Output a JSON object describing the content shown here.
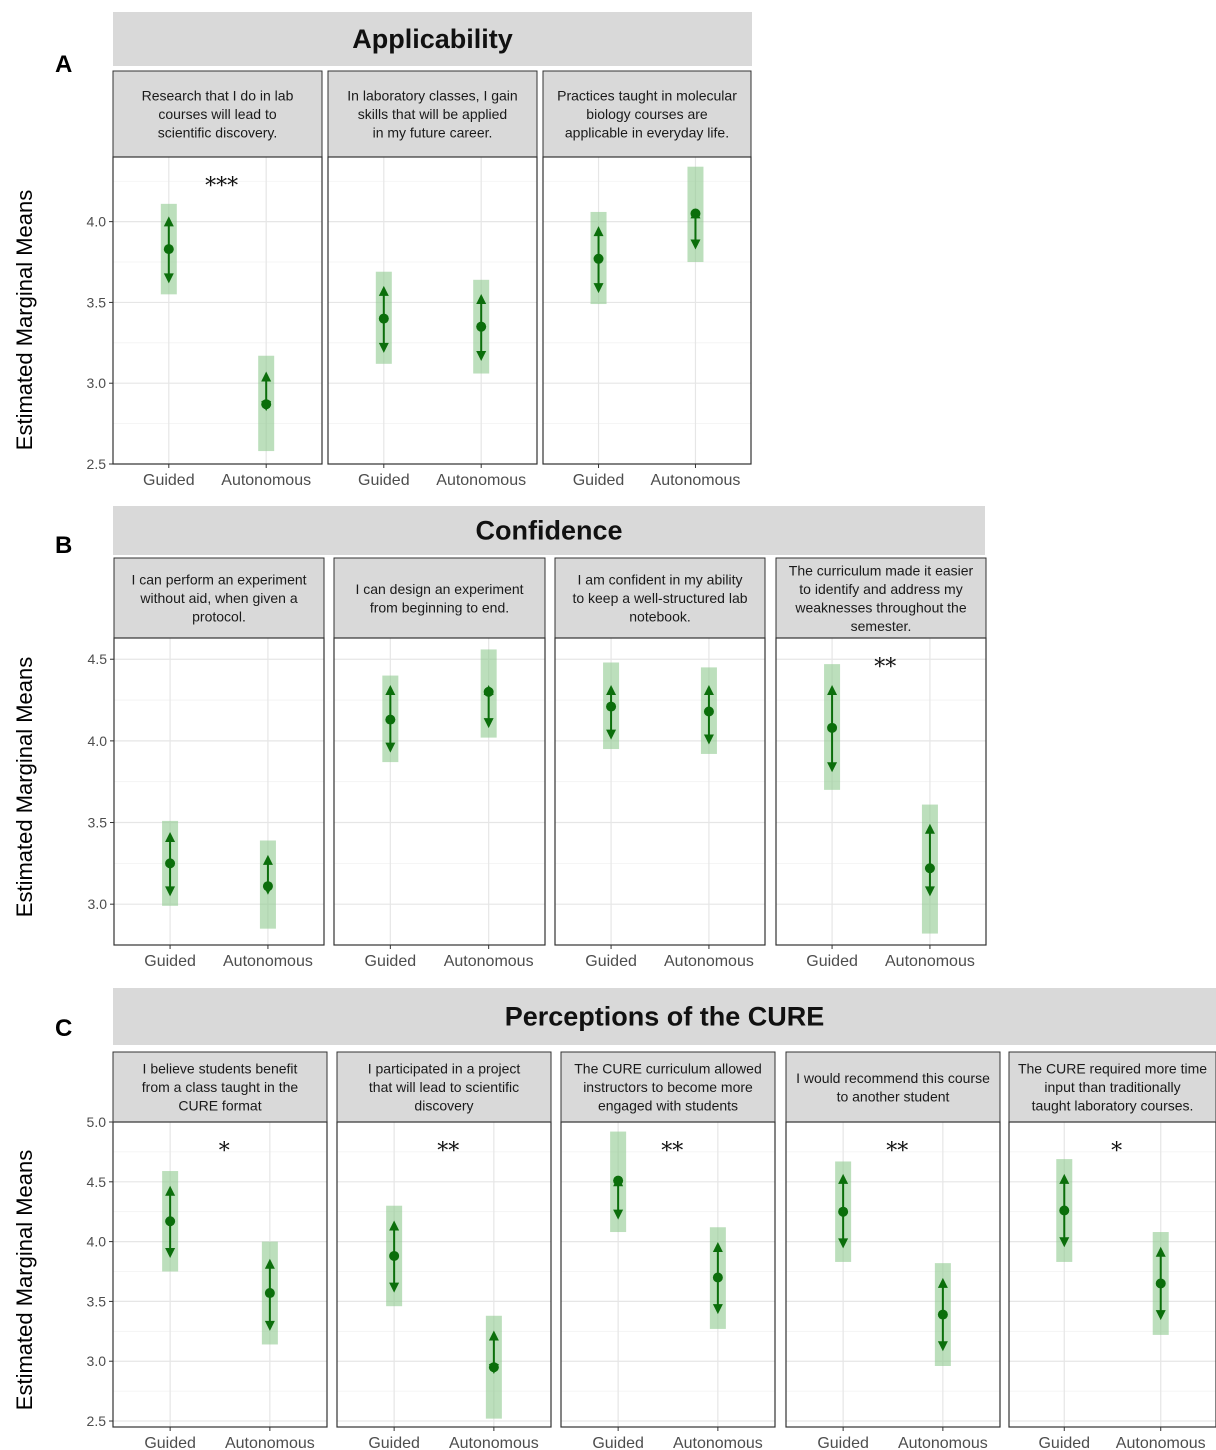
{
  "chart_data": [
    {
      "type": "scatter",
      "panel": "A",
      "title": "Applicability",
      "ylabel": "Estimated Marginal Means",
      "ylim": [
        2.5,
        4.4
      ],
      "yticks": [
        "2.5",
        "3.0",
        "3.5",
        "4.0"
      ],
      "categories": [
        "Guided",
        "Autonomous"
      ],
      "grid": true,
      "facets": [
        {
          "label": "Research that I do in lab courses will lead to scientific discovery.",
          "significance": "***",
          "points": [
            {
              "x": "Guided",
              "y": 3.83,
              "ci": [
                3.55,
                4.11
              ],
              "arrow": [
                3.63,
                4.02
              ]
            },
            {
              "x": "Autonomous",
              "y": 2.87,
              "ci": [
                2.58,
                3.17
              ],
              "arrow": [
                2.84,
                3.06
              ]
            }
          ]
        },
        {
          "label": "In laboratory classes, I gain skills that will be applied in my future career.",
          "significance": "",
          "points": [
            {
              "x": "Guided",
              "y": 3.4,
              "ci": [
                3.12,
                3.69
              ],
              "arrow": [
                3.2,
                3.59
              ]
            },
            {
              "x": "Autonomous",
              "y": 3.35,
              "ci": [
                3.06,
                3.64
              ],
              "arrow": [
                3.15,
                3.54
              ]
            }
          ]
        },
        {
          "label": "Practices taught in molecular biology courses are applicable in everyday life.",
          "significance": "",
          "points": [
            {
              "x": "Guided",
              "y": 3.77,
              "ci": [
                3.49,
                4.06
              ],
              "arrow": [
                3.57,
                3.96
              ]
            },
            {
              "x": "Autonomous",
              "y": 4.05,
              "ci": [
                3.75,
                4.34
              ],
              "arrow": [
                3.84,
                4.07
              ]
            }
          ]
        }
      ]
    },
    {
      "type": "scatter",
      "panel": "B",
      "title": "Confidence",
      "ylabel": "Estimated Marginal Means",
      "ylim": [
        2.75,
        4.63
      ],
      "yticks": [
        "3.0",
        "3.5",
        "4.0",
        "4.5"
      ],
      "categories": [
        "Guided",
        "Autonomous"
      ],
      "grid": true,
      "facets": [
        {
          "label": "I can perform an experiment without aid, when given a protocol.",
          "significance": "",
          "points": [
            {
              "x": "Guided",
              "y": 3.25,
              "ci": [
                2.99,
                3.51
              ],
              "arrow": [
                3.06,
                3.43
              ]
            },
            {
              "x": "Autonomous",
              "y": 3.11,
              "ci": [
                2.85,
                3.39
              ],
              "arrow": [
                3.07,
                3.29
              ]
            }
          ]
        },
        {
          "label": "I can design an experiment from beginning to end.",
          "significance": "",
          "points": [
            {
              "x": "Guided",
              "y": 4.13,
              "ci": [
                3.87,
                4.4
              ],
              "arrow": [
                3.94,
                4.33
              ]
            },
            {
              "x": "Autonomous",
              "y": 4.3,
              "ci": [
                4.02,
                4.56
              ],
              "arrow": [
                4.09,
                4.33
              ]
            }
          ]
        },
        {
          "label": "I am confident in my ability to keep a well-structured lab notebook.",
          "significance": "",
          "points": [
            {
              "x": "Guided",
              "y": 4.21,
              "ci": [
                3.95,
                4.48
              ],
              "arrow": [
                4.02,
                4.33
              ]
            },
            {
              "x": "Autonomous",
              "y": 4.18,
              "ci": [
                3.92,
                4.45
              ],
              "arrow": [
                3.99,
                4.33
              ]
            }
          ]
        },
        {
          "label": "The curriculum made it easier to identify and address my weaknesses throughout the semester.",
          "significance": "**",
          "points": [
            {
              "x": "Guided",
              "y": 4.08,
              "ci": [
                3.7,
                4.47
              ],
              "arrow": [
                3.82,
                4.33
              ]
            },
            {
              "x": "Autonomous",
              "y": 3.22,
              "ci": [
                2.82,
                3.61
              ],
              "arrow": [
                3.06,
                3.48
              ]
            }
          ]
        }
      ]
    },
    {
      "type": "scatter",
      "panel": "C",
      "title": "Perceptions of the CURE",
      "ylabel": "Estimated Marginal Means",
      "ylim": [
        2.45,
        5.0
      ],
      "yticks": [
        "2.5",
        "3.0",
        "3.5",
        "4.0",
        "4.5",
        "5.0"
      ],
      "categories": [
        "Guided",
        "Autonomous"
      ],
      "grid": true,
      "facets": [
        {
          "label": "I believe students benefit from a class taught in the CURE format",
          "significance": "*",
          "points": [
            {
              "x": "Guided",
              "y": 4.17,
              "ci": [
                3.75,
                4.59
              ],
              "arrow": [
                3.88,
                4.45
              ]
            },
            {
              "x": "Autonomous",
              "y": 3.57,
              "ci": [
                3.14,
                4.0
              ],
              "arrow": [
                3.27,
                3.84
              ]
            }
          ]
        },
        {
          "label": "I participated in a project that will lead to scientific discovery",
          "significance": "**",
          "points": [
            {
              "x": "Guided",
              "y": 3.88,
              "ci": [
                3.46,
                4.3
              ],
              "arrow": [
                3.59,
                4.16
              ]
            },
            {
              "x": "Autonomous",
              "y": 2.95,
              "ci": [
                2.52,
                3.38
              ],
              "arrow": [
                2.91,
                3.24
              ]
            }
          ]
        },
        {
          "label": "The CURE curriculum allowed instructors to become more engaged with students",
          "significance": "**",
          "points": [
            {
              "x": "Guided",
              "y": 4.51,
              "ci": [
                4.08,
                4.92
              ],
              "arrow": [
                4.2,
                4.53
              ]
            },
            {
              "x": "Autonomous",
              "y": 3.7,
              "ci": [
                3.27,
                4.12
              ],
              "arrow": [
                3.41,
                3.98
              ]
            }
          ]
        },
        {
          "label": "I would recommend this course to another student",
          "significance": "**",
          "points": [
            {
              "x": "Guided",
              "y": 4.25,
              "ci": [
                3.83,
                4.67
              ],
              "arrow": [
                3.96,
                4.55
              ]
            },
            {
              "x": "Autonomous",
              "y": 3.39,
              "ci": [
                2.96,
                3.82
              ],
              "arrow": [
                3.1,
                3.68
              ]
            }
          ]
        },
        {
          "label": "The CURE required more time input than traditionally taught laboratory courses.",
          "significance": "*",
          "points": [
            {
              "x": "Guided",
              "y": 4.26,
              "ci": [
                3.83,
                4.69
              ],
              "arrow": [
                3.97,
                4.55
              ]
            },
            {
              "x": "Autonomous",
              "y": 3.65,
              "ci": [
                3.22,
                4.08
              ],
              "arrow": [
                3.36,
                3.94
              ]
            }
          ]
        }
      ]
    }
  ]
}
